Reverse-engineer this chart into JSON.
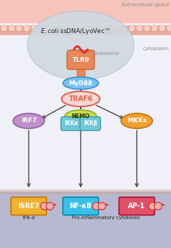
{
  "fig_width": 2.5,
  "fig_height": 3.61,
  "dpi": 100,
  "bg_top": "#f5c5bb",
  "bg_mid": "#f0f0f8",
  "bg_bot": "#b8b8d0",
  "membrane_color": "#e8a090",
  "membrane_dot_color": "#f5d5c8",
  "membrane2_color": "#c8a898",
  "endosome_fill": "#d0d8e0",
  "endosome_edge": "#b8c0c8",
  "tlr9_fill": "#e8885a",
  "tlr9_edge": "#c86030",
  "tlr9_stem_fill": "#e8885a",
  "dna_wave_color": "#e03030",
  "myd88_fill": "#78c0f0",
  "myd88_edge": "#3890c8",
  "traf6_fill": "#f8d8d0",
  "traf6_edge": "#e06050",
  "irf7_fill": "#c090c8",
  "irf7_edge": "#9060a0",
  "nemo_fill": "#c8e050",
  "nemo_edge": "#90a820",
  "ikk_fill": "#70c8d8",
  "ikk_edge": "#3898a8",
  "mkks_fill": "#f0a030",
  "mkks_edge": "#c07010",
  "isre7_fill": "#f0b030",
  "isre7_edge": "#c88010",
  "nfkb_fill": "#38c0e8",
  "nfkb_edge": "#1090b0",
  "ap1_fill": "#e05068",
  "ap1_edge": "#b02040",
  "arrow_color": "#404040",
  "orange_arrow": "#e07838",
  "text_dark": "#202020",
  "text_gray": "#888888",
  "text_gray2": "#606060",
  "label_extracellular": "Extracellular space",
  "label_cytoplasm": "Cytoplasm",
  "label_endosome": "Endosome",
  "label_ecoli": "E. coli ssDNA/LyoVec™",
  "label_tlr9": "TLR9",
  "label_myd88": "MyD88",
  "label_traf6": "TRAF6",
  "label_irf7": "IRF7",
  "label_nemo": "NEMO",
  "label_ikka": "IKKα",
  "label_ikkb": "IKKβ",
  "label_mkks": "MKKs",
  "label_isre7": "ISRE7",
  "label_nfkb": "NF-κB",
  "label_ap1": "AP-1",
  "label_ifn": "IFN-α",
  "label_pro": "Pro-inflammatory cytokines"
}
